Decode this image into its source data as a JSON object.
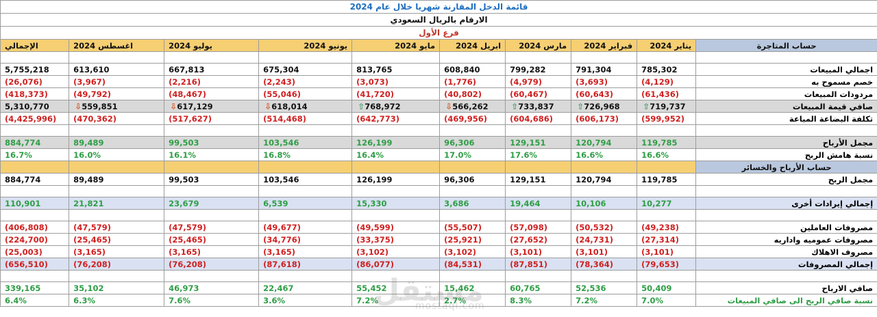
{
  "titles": {
    "main": "قائمة الدخل المقارنة شهريا خلال عام 2024",
    "currency": "الارقام بالريال السعودي",
    "branch": "فرع الأول"
  },
  "header": {
    "section1": "حساب المتاجرة",
    "months": [
      "يناير 2024",
      "فبراير 2024",
      "مارس 2024",
      "ابريل 2024",
      "مايو 2024",
      "يونيو 2024",
      "يوليو 2024",
      "اغسطس 2024"
    ],
    "total": "الإجمالي"
  },
  "rows": {
    "gross_sales": {
      "label": "اجمالي المبيعات",
      "values": [
        "785,302",
        "791,304",
        "799,282",
        "608,840",
        "813,765",
        "675,304",
        "667,813",
        "613,610"
      ],
      "total": "5,755,218"
    },
    "discount": {
      "label": "خصم مسموح به",
      "values": [
        "(4,129)",
        "(3,693)",
        "(4,979)",
        "(1,776)",
        "(3,073)",
        "(2,243)",
        "(2,216)",
        "(3,967)"
      ],
      "total": "(26,076)"
    },
    "returns": {
      "label": "مردودات المبيعات",
      "values": [
        "(61,436)",
        "(60,643)",
        "(60,467)",
        "(40,802)",
        "(41,720)",
        "(55,046)",
        "(48,467)",
        "(49,792)"
      ],
      "total": "(418,373)"
    },
    "net_sales": {
      "label": "صافي قيمة المبيعات",
      "values": [
        "719,737",
        "726,968",
        "733,837",
        "566,262",
        "768,972",
        "618,014",
        "617,129",
        "559,851"
      ],
      "total": "5,310,770",
      "arrows": [
        "up",
        "up",
        "up",
        "down",
        "up",
        "down",
        "down",
        "down"
      ],
      "arrow_icons": {
        "up": "⇧",
        "down": "⇩"
      }
    },
    "cogs": {
      "label": "تكلفة البضاعة المباعة",
      "values": [
        "(599,952)",
        "(606,173)",
        "(604,686)",
        "(469,956)",
        "(642,773)",
        "(514,468)",
        "(517,627)",
        "(470,362)"
      ],
      "total": "(4,425,996)"
    },
    "gross_profit": {
      "label": "مجمل الأرباح",
      "values": [
        "119,785",
        "120,794",
        "129,151",
        "96,306",
        "126,199",
        "103,546",
        "99,503",
        "89,489"
      ],
      "total": "884,774"
    },
    "gross_margin": {
      "label": "نسبة هامش الربح",
      "values": [
        "16.6%",
        "16.6%",
        "17.6%",
        "17.0%",
        "16.4%",
        "16.8%",
        "16.1%",
        "16.0%"
      ],
      "total": "16.7%"
    },
    "pl_section": {
      "label": "حساب الأرباح والخسائر"
    },
    "gross_profit2": {
      "label": "مجمل الربح",
      "values": [
        "119,785",
        "120,794",
        "129,151",
        "96,306",
        "126,199",
        "103,546",
        "99,503",
        "89,489"
      ],
      "total": "884,774"
    },
    "other_income": {
      "label": "إجمالي إيرادات أخرى",
      "values": [
        "10,277",
        "10,106",
        "19,464",
        "3,686",
        "15,330",
        "6,539",
        "23,679",
        "21,821"
      ],
      "total": "110,901"
    },
    "salaries": {
      "label": "مصروفات العاملين",
      "values": [
        "(49,238)",
        "(50,532)",
        "(57,098)",
        "(55,507)",
        "(49,599)",
        "(49,677)",
        "(47,579)",
        "(47,579)"
      ],
      "total": "(406,808)"
    },
    "admin": {
      "label": "مصروفات عموميه واداريه",
      "values": [
        "(27,314)",
        "(24,731)",
        "(27,652)",
        "(25,921)",
        "(33,375)",
        "(34,776)",
        "(25,465)",
        "(25,465)"
      ],
      "total": "(224,700)"
    },
    "depreciation": {
      "label": "مصروف الاهلاك",
      "values": [
        "(3,101)",
        "(3,101)",
        "(3,101)",
        "(3,102)",
        "(3,102)",
        "(3,165)",
        "(3,165)",
        "(3,165)"
      ],
      "total": "(25,003)"
    },
    "total_expenses": {
      "label": "إجمالي المصروفات",
      "values": [
        "(79,653)",
        "(78,364)",
        "(87,851)",
        "(84,531)",
        "(86,077)",
        "(87,618)",
        "(76,208)",
        "(76,208)"
      ],
      "total": "(656,510)"
    },
    "net_profit": {
      "label": "صافي الارباح",
      "values": [
        "50,409",
        "52,536",
        "60,765",
        "15,462",
        "55,452",
        "22,467",
        "46,973",
        "35,102"
      ],
      "total": "339,165"
    },
    "net_margin": {
      "label": "نسبة صافي الربح الى صافي المبيعات",
      "values": [
        "7.0%",
        "7.2%",
        "8.3%",
        "2.7%",
        "7.2%",
        "3.6%",
        "7.6%",
        "6.3%"
      ],
      "total": "6.4%"
    }
  },
  "watermark": {
    "main": "مستقل",
    "sub": "mostaql.com"
  },
  "colors": {
    "header_bg": "#f6cf73",
    "corner_bg": "#b9c8de",
    "negative": "#d02020",
    "positive": "#2e9e45",
    "title_blue": "#1f6fc0",
    "title_red": "#c0392b"
  }
}
